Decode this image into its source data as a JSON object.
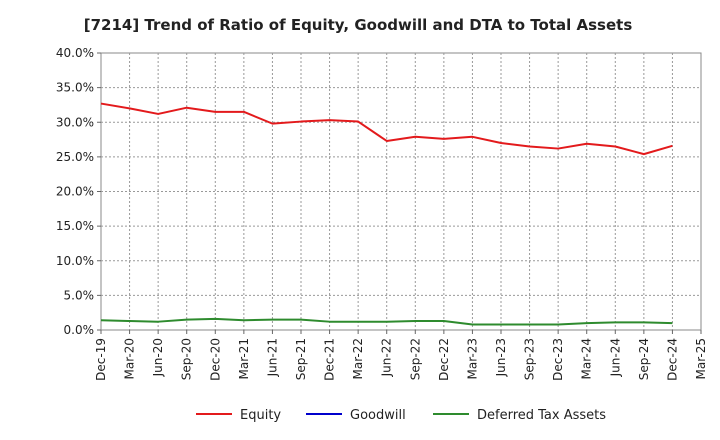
{
  "chart_data": {
    "type": "line",
    "title": "[7214]  Trend of Ratio of Equity, Goodwill and DTA to Total Assets",
    "xlabel": "",
    "ylabel": "",
    "ylim": [
      0,
      40
    ],
    "y_ticks": [
      0,
      5,
      10,
      15,
      20,
      25,
      30,
      35,
      40
    ],
    "y_tick_labels": [
      "0.0%",
      "5.0%",
      "10.0%",
      "15.0%",
      "20.0%",
      "25.0%",
      "30.0%",
      "35.0%",
      "40.0%"
    ],
    "categories": [
      "Dec-19",
      "Mar-20",
      "Jun-20",
      "Sep-20",
      "Dec-20",
      "Mar-21",
      "Jun-21",
      "Sep-21",
      "Dec-21",
      "Mar-22",
      "Jun-22",
      "Sep-22",
      "Dec-22",
      "Mar-23",
      "Jun-23",
      "Sep-23",
      "Dec-23",
      "Mar-24",
      "Jun-24",
      "Sep-24",
      "Dec-24",
      "Mar-25"
    ],
    "grid": true,
    "legend_position": "bottom",
    "series": [
      {
        "name": "Equity",
        "color": "#e31a1c",
        "values": [
          32.7,
          32.0,
          31.2,
          32.1,
          31.5,
          31.5,
          29.8,
          30.1,
          30.3,
          30.1,
          27.3,
          27.9,
          27.6,
          27.9,
          27.0,
          26.5,
          26.2,
          26.9,
          26.5,
          25.4,
          26.6,
          null
        ]
      },
      {
        "name": "Goodwill",
        "color": "#0000cc",
        "values": [
          null,
          null,
          null,
          null,
          null,
          null,
          null,
          null,
          null,
          null,
          null,
          null,
          null,
          null,
          null,
          null,
          null,
          null,
          null,
          null,
          null,
          null
        ]
      },
      {
        "name": "Deferred Tax Assets",
        "color": "#2e8b2e",
        "values": [
          1.4,
          1.3,
          1.2,
          1.5,
          1.6,
          1.4,
          1.5,
          1.5,
          1.2,
          1.2,
          1.2,
          1.3,
          1.3,
          0.8,
          0.8,
          0.8,
          0.8,
          1.0,
          1.1,
          1.1,
          1.0,
          null
        ]
      }
    ]
  }
}
